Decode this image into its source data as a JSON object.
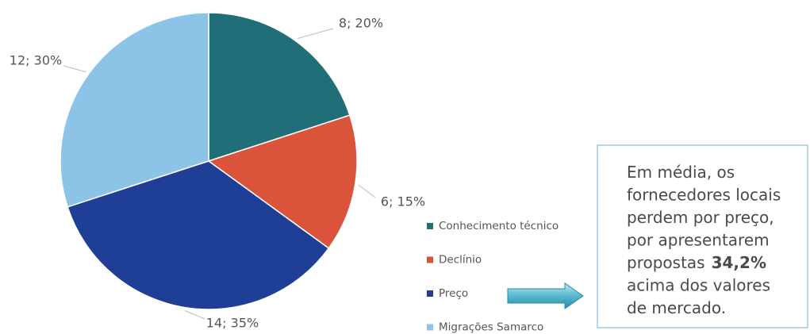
{
  "chart_data": {
    "type": "pie",
    "categories": [
      "Conhecimento técnico",
      "Declínio",
      "Preço",
      "Migrações Samarco"
    ],
    "values": [
      8,
      6,
      14,
      12
    ],
    "value_labels": [
      "8; 20%",
      "6; 15%",
      "14; 35%",
      "12; 30%"
    ],
    "colors": [
      "#1f6e78",
      "#d9543a",
      "#1f3e96",
      "#8ec3e8"
    ],
    "legend": "right"
  },
  "annotation": {
    "lines": [
      "Em média, os",
      "fornecedores locais",
      "perdem por preço,",
      "por apresentarem",
      "propostas",
      "acima dos valores",
      "de mercado."
    ],
    "bold": "34,2%"
  }
}
